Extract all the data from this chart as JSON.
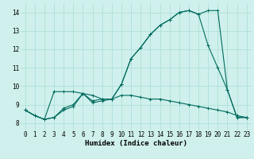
{
  "xlabel": "Humidex (Indice chaleur)",
  "xlim": [
    -0.5,
    23.5
  ],
  "ylim": [
    7.6,
    14.5
  ],
  "xticks": [
    0,
    1,
    2,
    3,
    4,
    5,
    6,
    7,
    8,
    9,
    10,
    11,
    12,
    13,
    14,
    15,
    16,
    17,
    18,
    19,
    20,
    21,
    22,
    23
  ],
  "yticks": [
    8,
    9,
    10,
    11,
    12,
    13,
    14
  ],
  "bg_color": "#cff0ec",
  "grid_color": "#aaddd6",
  "line_color": "#006b5e",
  "line1_x": [
    0,
    1,
    2,
    3,
    4,
    5,
    6,
    7,
    8,
    9,
    10,
    11,
    12,
    13,
    14,
    15,
    16,
    17,
    18,
    19,
    20,
    21,
    22,
    23
  ],
  "line1_y": [
    8.7,
    8.4,
    8.2,
    9.7,
    9.7,
    9.7,
    9.6,
    9.5,
    9.3,
    9.3,
    10.1,
    11.5,
    12.1,
    12.8,
    13.3,
    13.6,
    14.0,
    14.1,
    13.9,
    14.1,
    14.1,
    9.8,
    8.3,
    8.3
  ],
  "line2_x": [
    0,
    1,
    2,
    3,
    4,
    5,
    6,
    7,
    8,
    9,
    10,
    11,
    12,
    13,
    14,
    15,
    16,
    17,
    18,
    19,
    20,
    21,
    22,
    23
  ],
  "line2_y": [
    8.7,
    8.4,
    8.2,
    8.3,
    8.7,
    8.9,
    9.6,
    9.1,
    9.2,
    9.3,
    9.5,
    9.5,
    9.4,
    9.3,
    9.3,
    9.2,
    9.1,
    9.0,
    8.9,
    8.8,
    8.7,
    8.6,
    8.4,
    8.3
  ],
  "line3_x": [
    0,
    1,
    2,
    3,
    4,
    5,
    6,
    7,
    8,
    9,
    10,
    11,
    12,
    13,
    14,
    15,
    16,
    17,
    18,
    19,
    20,
    21,
    22,
    23
  ],
  "line3_y": [
    8.7,
    8.4,
    8.2,
    8.3,
    8.8,
    9.0,
    9.6,
    9.2,
    9.3,
    9.3,
    10.1,
    11.5,
    12.1,
    12.8,
    13.3,
    13.6,
    14.0,
    14.1,
    13.9,
    12.2,
    11.0,
    9.8,
    8.3,
    8.3
  ],
  "marker": "+",
  "markersize": 3,
  "linewidth": 0.8,
  "label_fontsize": 6.5,
  "tick_fontsize": 5.5
}
